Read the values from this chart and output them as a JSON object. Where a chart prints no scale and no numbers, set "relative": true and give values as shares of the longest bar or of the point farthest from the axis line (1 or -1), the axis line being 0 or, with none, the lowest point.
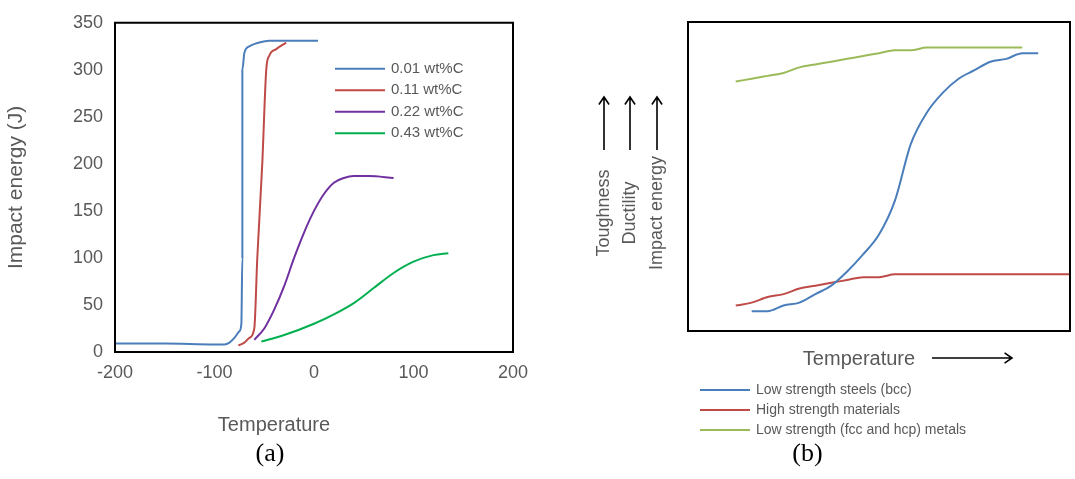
{
  "chart_data": [
    {
      "type": "line",
      "xlabel": "Temperature",
      "ylabel": "Impact energy (J)",
      "xlim": [
        -200,
        200
      ],
      "xticks": [
        -200,
        -100,
        0,
        100,
        200
      ],
      "ylim": [
        0,
        350
      ],
      "yticks": [
        0,
        50,
        100,
        150,
        200,
        250,
        300,
        350
      ],
      "legend": "top right",
      "annotations": [
        "(a)"
      ],
      "series": [
        {
          "name": "0.01 wt%C",
          "color": "#4a7ebb",
          "x": [
            -200,
            -150,
            -100,
            -90,
            -85,
            -80,
            -75,
            -73,
            -72,
            -72,
            -70,
            -65,
            -55,
            -45,
            0,
            4
          ],
          "values": [
            9,
            9,
            8,
            8,
            10,
            15,
            22,
            30,
            100,
            300,
            318,
            325,
            329,
            331,
            331,
            331
          ]
        },
        {
          "name": "0.11 wt%C",
          "color": "#be4b48",
          "x": [
            -76,
            -70,
            -65,
            -60,
            -57,
            -52,
            -48,
            -45,
            -38,
            -28
          ],
          "values": [
            7,
            10,
            15,
            25,
            100,
            200,
            300,
            315,
            322,
            329
          ]
        },
        {
          "name": "0.22 wt%C",
          "color": "#7030a0",
          "x": [
            -60,
            -50,
            -40,
            -30,
            -20,
            -10,
            0,
            10,
            20,
            30,
            40,
            55,
            80
          ],
          "values": [
            13,
            25,
            45,
            70,
            100,
            127,
            150,
            168,
            180,
            185,
            187,
            187,
            185
          ]
        },
        {
          "name": "0.43 wt%C",
          "color": "#00b050",
          "x": [
            -53,
            -30,
            0,
            20,
            40,
            60,
            80,
            100,
            120,
            135
          ],
          "values": [
            11,
            18,
            30,
            40,
            52,
            68,
            84,
            96,
            103,
            105
          ]
        }
      ]
    },
    {
      "type": "line",
      "relative": true,
      "xlabel": "Temperature",
      "legend": "bottom",
      "annotations": [
        "Toughness",
        "Ductility",
        "Impact energy",
        "(b)"
      ],
      "categories": [
        null,
        null,
        null,
        null,
        null,
        null,
        null,
        null,
        null,
        null,
        null,
        null,
        null,
        null,
        null,
        null,
        null,
        null,
        null,
        null,
        null,
        null,
        null,
        null,
        null
      ],
      "series": [
        {
          "name": "Low strength steels (bcc)",
          "color": "#4a7ebb",
          "values": [
            null,
            null,
            null,
            null,
            0.07,
            0.07,
            0.09,
            0.1,
            0.13,
            0.16,
            0.21,
            0.27,
            0.34,
            0.46,
            0.66,
            0.77,
            0.84,
            0.89,
            0.92,
            0.95,
            0.96,
            0.98,
            0.98,
            null,
            null
          ]
        },
        {
          "name": "High strength materials",
          "color": "#be4b48",
          "values": [
            null,
            null,
            null,
            0.09,
            0.1,
            0.12,
            0.13,
            0.15,
            0.16,
            0.17,
            0.18,
            0.19,
            0.19,
            0.2,
            0.2,
            0.2,
            0.2,
            0.2,
            0.2,
            0.2,
            0.2,
            0.2,
            0.2,
            0.2,
            0.2
          ]
        },
        {
          "name": "Low strength (fcc and hcp) metals",
          "color": "#9bbb59",
          "values": [
            null,
            null,
            null,
            0.88,
            0.89,
            0.9,
            0.91,
            0.93,
            0.94,
            0.95,
            0.96,
            0.97,
            0.98,
            0.99,
            0.99,
            1,
            1,
            1,
            1,
            1,
            1,
            1,
            null,
            null,
            null
          ]
        }
      ]
    }
  ]
}
